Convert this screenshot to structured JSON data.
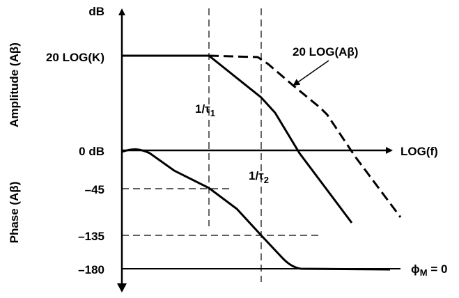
{
  "axes": {
    "y_top": "dB",
    "x_right": "LOG(f)",
    "amplitude_axis": "Amplitude (Aβ)",
    "phase_axis": "Phase (Aβ)"
  },
  "levels": {
    "gain": "20 LOG(K)",
    "zero": "0 dB",
    "p45": "–45",
    "p135": "–135",
    "p180": "–180"
  },
  "poles": [
    {
      "main": "1/τ",
      "sub": "1"
    },
    {
      "main": "1/τ",
      "sub": "2"
    }
  ],
  "curve_label": "20 LOG(Aβ)",
  "margin": {
    "main": "ϕ",
    "sub": "M",
    "rest": " = 0"
  }
}
